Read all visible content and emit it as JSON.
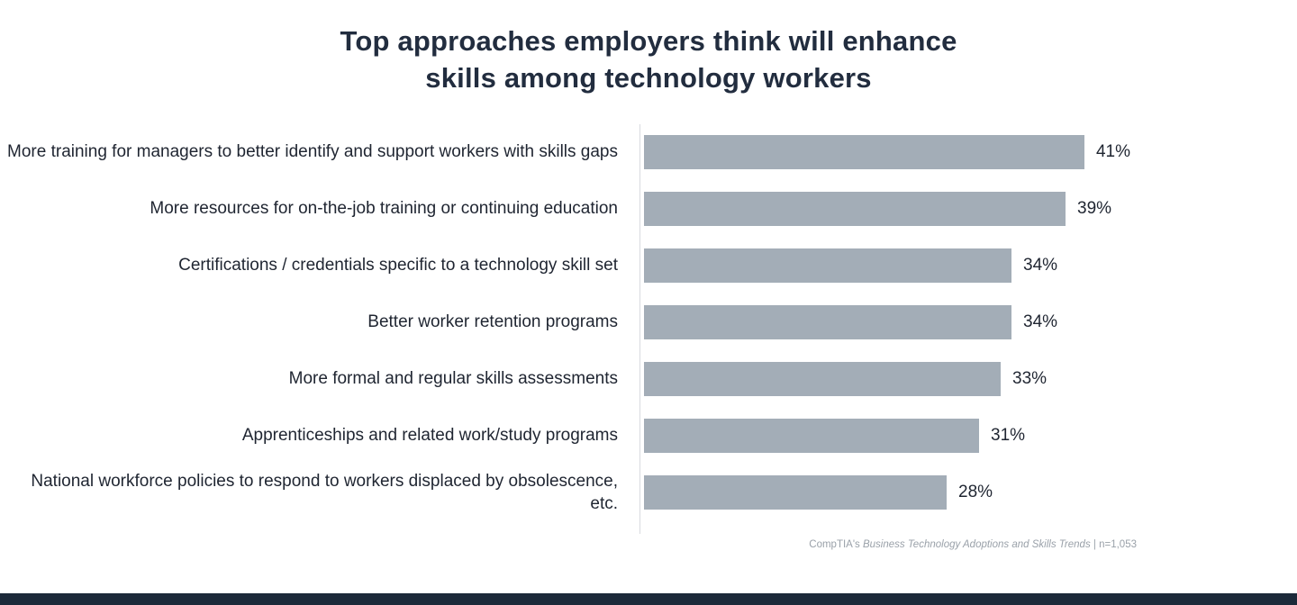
{
  "title": {
    "line1": "Top approaches employers think will enhance",
    "line2": "skills among technology workers"
  },
  "source": {
    "prefix": "CompTIA's ",
    "italic": "Business Technology Adoptions and Skills Trends",
    "suffix": " | n=1,053"
  },
  "colors": {
    "bar": "#a3adb7",
    "title": "#222d3f",
    "axis": "#d8dbdf",
    "footer": "#1c2a3a"
  },
  "chart_data": {
    "type": "bar",
    "orientation": "horizontal",
    "title": "Top approaches employers think will enhance skills among technology workers",
    "categories": [
      "More training for managers to better identify and support workers with skills gaps",
      "More resources for on-the-job training or continuing education",
      "Certifications / credentials specific to a technology skill set",
      "Better worker retention programs",
      "More formal and regular skills assessments",
      "Apprenticeships and related work/study programs",
      "National workforce policies to respond to workers displaced by obsolescence, etc."
    ],
    "values": [
      41,
      39,
      34,
      34,
      33,
      31,
      28
    ],
    "value_labels": [
      "41%",
      "39%",
      "34%",
      "34%",
      "33%",
      "31%",
      "28%"
    ],
    "xlabel": "",
    "ylabel": "",
    "xlim": [
      0,
      45
    ],
    "grid": false,
    "legend": false,
    "source": "CompTIA's Business Technology Adoptions and Skills Trends | n=1,053"
  }
}
